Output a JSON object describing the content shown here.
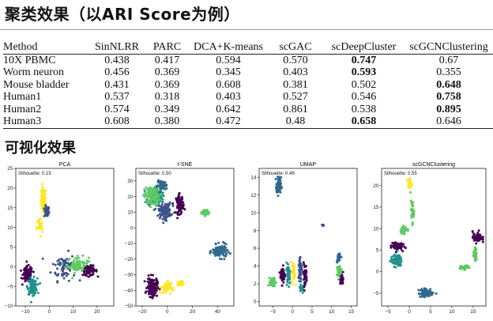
{
  "heading": "聚类效果（以ARI Score为例）",
  "table": {
    "columns": [
      "Method",
      "SinNLRR",
      "PARC",
      "DCA+K-means",
      "scGAC",
      "scDeepCluster",
      "scGCNClustering"
    ],
    "rows": [
      {
        "cells": [
          "10X PBMC",
          "0.438",
          "0.417",
          "0.594",
          "0.570",
          "0.747",
          "0.67"
        ],
        "best": 5
      },
      {
        "cells": [
          "Worm neuron",
          "0.456",
          "0.369",
          "0.345",
          "0.403",
          "0.593",
          "0.355"
        ],
        "best": 5
      },
      {
        "cells": [
          "Mouse bladder",
          "0.431",
          "0.369",
          "0.608",
          "0.381",
          "0.502",
          "0.648"
        ],
        "best": 6
      },
      {
        "cells": [
          "Human1",
          "0.537",
          "0.318",
          "0.403",
          "0.527",
          "0.546",
          "0.758"
        ],
        "best": 6
      },
      {
        "cells": [
          "Human2",
          "0.574",
          "0.349",
          "0.642",
          "0.861",
          "0.538",
          "0.895"
        ],
        "best": 6
      },
      {
        "cells": [
          "Human3",
          "0.608",
          "0.380",
          "0.472",
          "0.48",
          "0.658",
          "0.646"
        ],
        "best": 5
      }
    ]
  },
  "subheading": "可视化效果",
  "colors": {
    "c0": "#440154",
    "c1": "#3b528b",
    "c2": "#21918c",
    "c3": "#5ec962",
    "c4": "#fde725",
    "c5": "#31688e"
  },
  "chart_data": [
    {
      "type": "scatter",
      "title": "PCA",
      "silhouette": "Silhouette: 0.15",
      "xlim": [
        -14,
        27
      ],
      "ylim": [
        -10,
        25
      ],
      "xticks": [
        -10,
        0,
        10,
        20
      ],
      "yticks": [
        -10,
        -5,
        0,
        5,
        10,
        15,
        20,
        25
      ],
      "clusters": [
        {
          "color": "c4",
          "cx": -2.5,
          "cy": 17,
          "sx": 1.0,
          "sy": 3.2,
          "n": 90
        },
        {
          "color": "c1",
          "cx": -1,
          "cy": 14,
          "sx": 1.0,
          "sy": 1.5,
          "n": 40
        },
        {
          "color": "c1",
          "cx": 6,
          "cy": 0,
          "sx": 5,
          "sy": 3.5,
          "n": 70
        },
        {
          "color": "c3",
          "cx": 12,
          "cy": 0.5,
          "sx": 4.5,
          "sy": 2.0,
          "n": 80
        },
        {
          "color": "c0",
          "cx": 17,
          "cy": -1,
          "sx": 3,
          "sy": 1.2,
          "n": 70
        },
        {
          "color": "c0",
          "cx": -9,
          "cy": -2,
          "sx": 2.0,
          "sy": 2.0,
          "n": 120
        },
        {
          "color": "c2",
          "cx": -7,
          "cy": -5,
          "sx": 2.0,
          "sy": 2.0,
          "n": 110
        },
        {
          "color": "c4",
          "cx": -4,
          "cy": 10,
          "sx": 1.2,
          "sy": 2.5,
          "n": 25
        }
      ]
    },
    {
      "type": "scatter",
      "title": "t-SNE",
      "silhouette": "Silhouette: 0.50",
      "xlim": [
        -25,
        53
      ],
      "ylim": [
        -50,
        38
      ],
      "xticks": [
        -20,
        0,
        20,
        40
      ],
      "yticks": [
        -50,
        -40,
        -30,
        -20,
        -10,
        0,
        10,
        20,
        30
      ],
      "clusters": [
        {
          "color": "c2",
          "cx": -10,
          "cy": 20,
          "sx": 6,
          "sy": 6,
          "n": 160
        },
        {
          "color": "c3",
          "cx": -12,
          "cy": 20,
          "sx": 6,
          "sy": 6,
          "n": 120
        },
        {
          "color": "c1",
          "cx": -2,
          "cy": 11,
          "sx": 5,
          "sy": 5,
          "n": 120
        },
        {
          "color": "c5",
          "cx": -4,
          "cy": 27,
          "sx": 4,
          "sy": 3,
          "n": 60
        },
        {
          "color": "c0",
          "cx": 10,
          "cy": 15,
          "sx": 3,
          "sy": 6,
          "n": 80
        },
        {
          "color": "c3",
          "cx": 30,
          "cy": 10,
          "sx": 2.5,
          "sy": 2,
          "n": 40
        },
        {
          "color": "c5",
          "cx": 42,
          "cy": -15,
          "sx": 6,
          "sy": 4,
          "n": 120
        },
        {
          "color": "c0",
          "cx": -12,
          "cy": -38,
          "sx": 4,
          "sy": 6,
          "n": 170
        },
        {
          "color": "c4",
          "cx": -1,
          "cy": -38,
          "sx": 4,
          "sy": 4,
          "n": 50
        },
        {
          "color": "c4",
          "cx": 10,
          "cy": -36,
          "sx": 3,
          "sy": 2,
          "n": 20
        }
      ]
    },
    {
      "type": "scatter",
      "title": "UMAP",
      "silhouette": "Silhouette: 0.49",
      "xlim": [
        -8.5,
        16.5
      ],
      "ylim": [
        -0.5,
        15
      ],
      "xticks": [
        -5,
        0,
        5,
        10,
        15
      ],
      "yticks": [
        0,
        2,
        4,
        6,
        8,
        10,
        12,
        14
      ],
      "clusters": [
        {
          "color": "c5",
          "cx": -3.5,
          "cy": 13.0,
          "sx": 0.6,
          "sy": 1.0,
          "n": 70
        },
        {
          "color": "c3",
          "cx": -5,
          "cy": 2.2,
          "sx": 0.7,
          "sy": 0.5,
          "n": 40
        },
        {
          "color": "c0",
          "cx": -2.5,
          "cy": 3.0,
          "sx": 0.6,
          "sy": 1.0,
          "n": 60
        },
        {
          "color": "c2",
          "cx": -1,
          "cy": 3.2,
          "sx": 0.5,
          "sy": 1.2,
          "n": 50
        },
        {
          "color": "c4",
          "cx": 0.3,
          "cy": 3.2,
          "sx": 0.4,
          "sy": 1.2,
          "n": 40
        },
        {
          "color": "c1",
          "cx": 2,
          "cy": 3.8,
          "sx": 0.5,
          "sy": 1.4,
          "n": 50
        },
        {
          "color": "c2",
          "cx": 2.3,
          "cy": 1.5,
          "sx": 0.4,
          "sy": 0.6,
          "n": 25
        },
        {
          "color": "c0",
          "cx": 3.2,
          "cy": 3.0,
          "sx": 0.5,
          "sy": 1.3,
          "n": 40
        },
        {
          "color": "c5",
          "cx": 11.8,
          "cy": 5.0,
          "sx": 0.5,
          "sy": 0.5,
          "n": 40
        },
        {
          "color": "c3",
          "cx": 12.0,
          "cy": 3.4,
          "sx": 0.5,
          "sy": 0.6,
          "n": 50
        },
        {
          "color": "c0",
          "cx": 12.6,
          "cy": 2.5,
          "sx": 0.4,
          "sy": 0.6,
          "n": 35
        },
        {
          "color": "c1",
          "cx": 7.8,
          "cy": 8.6,
          "sx": 0.2,
          "sy": 0.2,
          "n": 6
        }
      ]
    },
    {
      "type": "scatter",
      "title": "scGCNClustering",
      "silhouette": "Silhouette: 0.55",
      "xlim": [
        -6.5,
        18
      ],
      "ylim": [
        -8,
        24
      ],
      "xticks": [
        -5,
        0,
        5,
        10,
        15
      ],
      "yticks": [
        -5,
        0,
        5,
        10,
        15,
        20
      ],
      "clusters": [
        {
          "color": "c4",
          "cx": 0,
          "cy": 20.5,
          "sx": 0.5,
          "sy": 1.2,
          "n": 35
        },
        {
          "color": "c3",
          "cx": 0.7,
          "cy": 14,
          "sx": 0.4,
          "sy": 2.5,
          "n": 40
        },
        {
          "color": "c3",
          "cx": -1,
          "cy": 9.5,
          "sx": 1.0,
          "sy": 1.0,
          "n": 20
        },
        {
          "color": "c0",
          "cx": -3,
          "cy": 6,
          "sx": 1.3,
          "sy": 1.0,
          "n": 80
        },
        {
          "color": "c2",
          "cx": -3,
          "cy": 2.5,
          "sx": 1.3,
          "sy": 1.3,
          "n": 90
        },
        {
          "color": "c0",
          "cx": 16,
          "cy": 8,
          "sx": 1.1,
          "sy": 1.3,
          "n": 70
        },
        {
          "color": "c3",
          "cx": 15.5,
          "cy": 4,
          "sx": 0.4,
          "sy": 1.5,
          "n": 35
        },
        {
          "color": "c3",
          "cx": 13,
          "cy": 1,
          "sx": 1.3,
          "sy": 0.4,
          "n": 35
        },
        {
          "color": "c5",
          "cx": 4,
          "cy": -5,
          "sx": 1.8,
          "sy": 1.0,
          "n": 70
        }
      ]
    }
  ]
}
